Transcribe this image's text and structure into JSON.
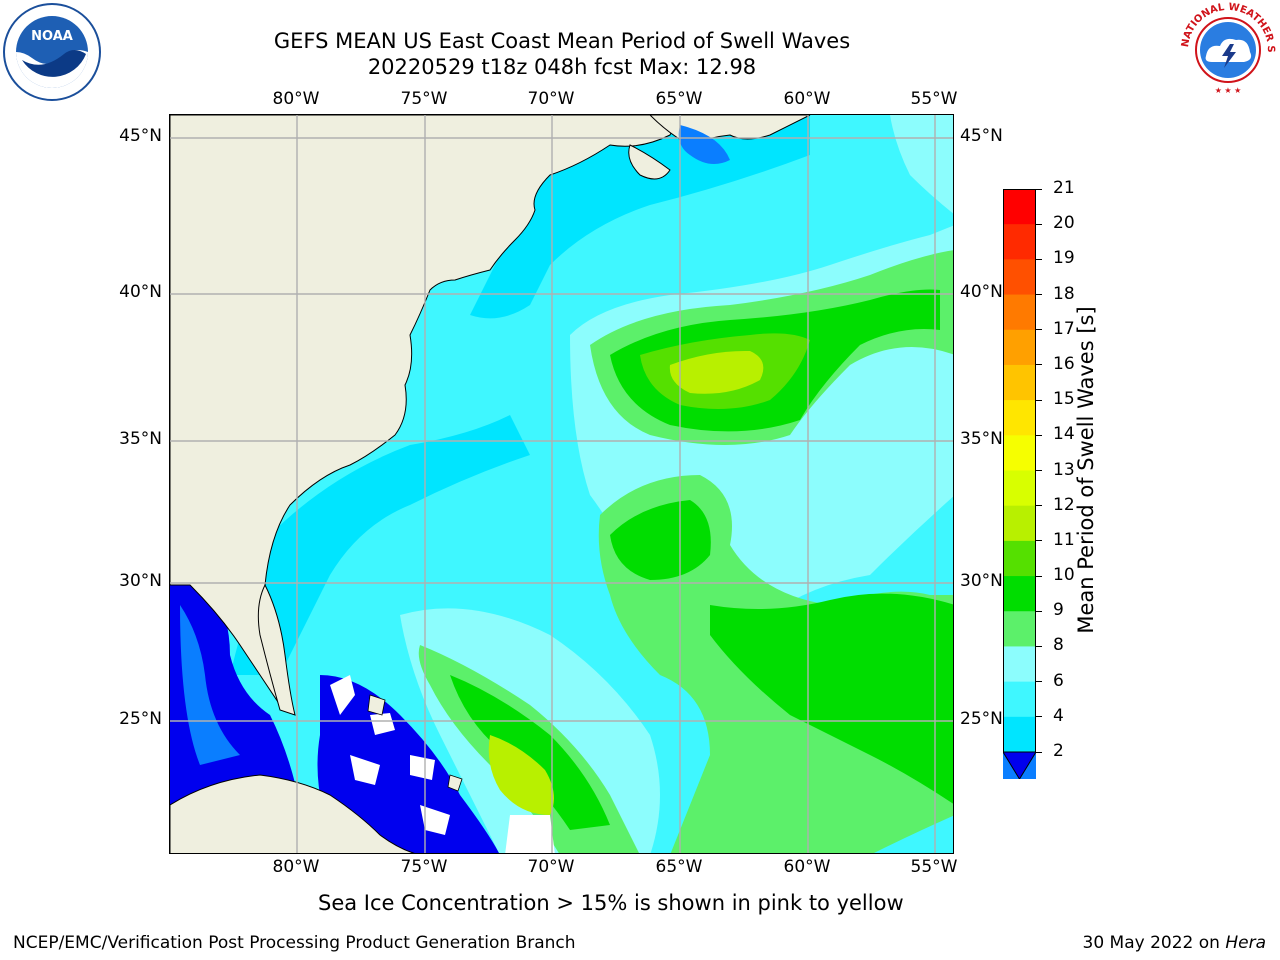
{
  "header": {
    "title_line1": "GEFS MEAN US East Coast Mean Period of Swell Waves",
    "title_line2": "20220529 t18z 048h fcst   Max: 12.98"
  },
  "logos": {
    "left": {
      "name": "noaa-logo",
      "text": "NOAA"
    },
    "right": {
      "name": "nws-logo",
      "text": "NATIONAL WEATHER SERVICE"
    }
  },
  "map": {
    "lon_labels": [
      "80°W",
      "75°W",
      "70°W",
      "65°W",
      "60°W",
      "55°W"
    ],
    "lat_labels": [
      "45°N",
      "40°N",
      "35°N",
      "30°N",
      "25°N"
    ],
    "colors": {
      "land": "#efefdf",
      "grid": "#b0b0b0",
      "c2_4": "#0a7eff",
      "c4_6": "#00e5ff",
      "c6_8": "#3ff7ff",
      "c8_9": "#8cfdfd",
      "c9_10": "#5cf06a",
      "c10_11": "#00dd00",
      "c11_12": "#55e000",
      "c12_13": "#b8f000",
      "deep_blue": "#0000ee",
      "white": "#ffffff"
    }
  },
  "colorbar": {
    "title": "Mean Period of Swell Waves [s]",
    "ticks": [
      "21",
      "20",
      "19",
      "18",
      "17",
      "16",
      "15",
      "14",
      "13",
      "12",
      "11",
      "10",
      "9",
      "8",
      "6",
      "4",
      "2"
    ],
    "colors": [
      "#ff0000",
      "#ff2a00",
      "#ff5000",
      "#ff7a00",
      "#ffa000",
      "#ffc400",
      "#ffe600",
      "#f6ff00",
      "#d8ff00",
      "#b8f000",
      "#55e000",
      "#00dd00",
      "#5cf06a",
      "#8cfdfd",
      "#3ff7ff",
      "#00e5ff",
      "#0a7eff"
    ],
    "under_color": "#0000ee"
  },
  "footer": {
    "note": "Sea Ice Concentration > 15% is shown in pink to yellow",
    "left": "NCEP/EMC/Verification Post Processing Product Generation Branch",
    "right_prefix": "30 May 2022 on ",
    "right_machine": "Hera"
  }
}
